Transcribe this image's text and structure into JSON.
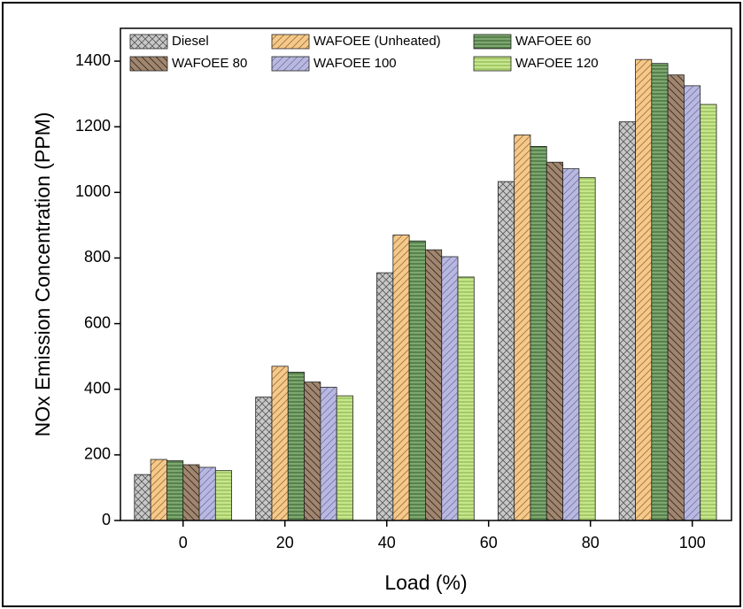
{
  "chart_data": {
    "type": "bar",
    "x_label": "Load (%)",
    "y_label": "NOx Emission Concentration (PPM)",
    "x": [
      0,
      23.8,
      47.6,
      71.4,
      95.2
    ],
    "series": [
      {
        "name": "Diesel",
        "color": "#c8c8c8",
        "values": [
          140,
          376,
          755,
          1033,
          1215
        ]
      },
      {
        "name": "WAFOEE (Unheated)",
        "color": "#f5c98a",
        "values": [
          186,
          470,
          870,
          1175,
          1405
        ]
      },
      {
        "name": "WAFOEE 60",
        "color": "#7fa870",
        "values": [
          182,
          452,
          852,
          1140,
          1393
        ]
      },
      {
        "name": "WAFOEE 80",
        "color": "#a08670",
        "values": [
          170,
          422,
          825,
          1092,
          1358
        ]
      },
      {
        "name": "WAFOEE 100",
        "color": "#b8b8e0",
        "values": [
          162,
          406,
          804,
          1072,
          1325
        ]
      },
      {
        "name": "WAFOEE 120",
        "color": "#c8e68c",
        "values": [
          152,
          380,
          742,
          1045,
          1268
        ]
      }
    ],
    "xlim": [
      -12.3,
      107.7
    ],
    "xticks": [
      0,
      20,
      40,
      60,
      80,
      100
    ],
    "ylim": [
      0,
      1500
    ],
    "yticks": [
      0,
      200,
      400,
      600,
      800,
      1000,
      1200,
      1400
    ]
  }
}
